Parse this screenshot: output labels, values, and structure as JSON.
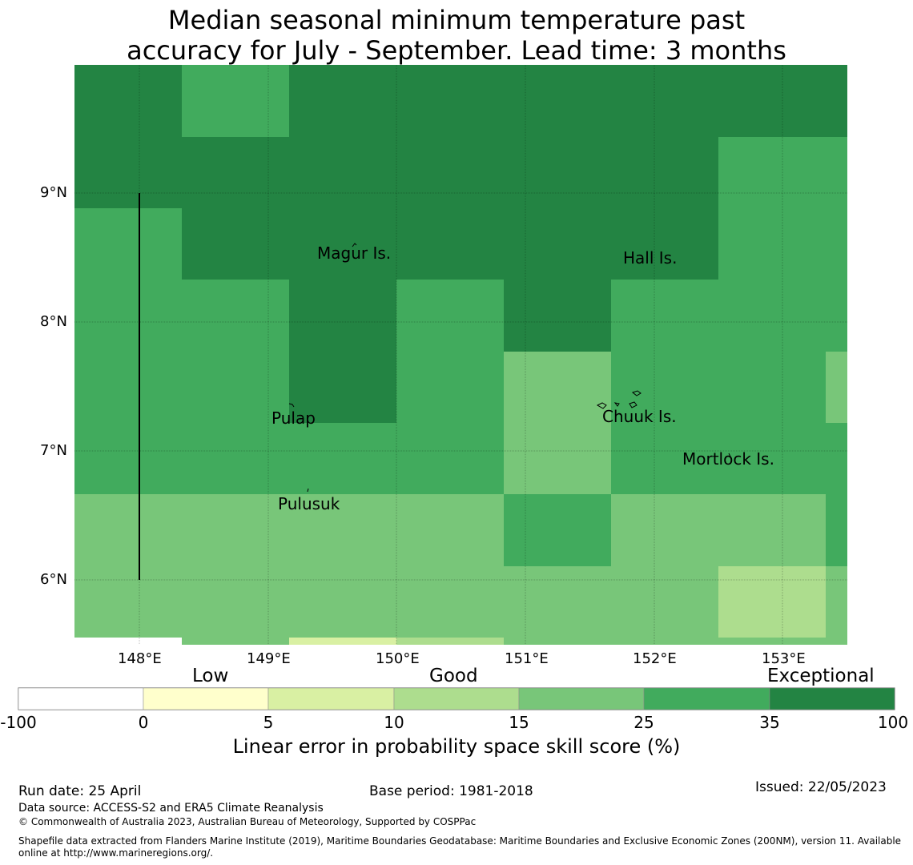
{
  "title": {
    "line1": "Median seasonal minimum temperature past",
    "line2": "accuracy for July - September. Lead time: 3 months"
  },
  "map": {
    "lon_range": [
      147.5,
      153.5
    ],
    "lat_range": [
      5.5,
      10.0
    ],
    "x_ticks": [
      "148°E",
      "149°E",
      "150°E",
      "151°E",
      "152°E",
      "153°E"
    ],
    "y_ticks": [
      "9°N",
      "8°N",
      "7°N",
      "6°N"
    ],
    "cell_levels_note": "level index: 0 = -100..0, 1 = 0..5, 2 = 5..10, 3 = 10..15, 4 = 15..25, 5 = 25..35, 6 = 35..100",
    "places": [
      {
        "name": "Magur Is."
      },
      {
        "name": "Hall Is."
      },
      {
        "name": "Pulap"
      },
      {
        "name": "Chuuk Is."
      },
      {
        "name": "Mortlock Is."
      },
      {
        "name": "Pulusuk"
      }
    ]
  },
  "colorbar": {
    "categories": [
      "Low",
      "Good",
      "Exceptional"
    ],
    "ticks": [
      "-100",
      "0",
      "5",
      "10",
      "15",
      "25",
      "35",
      "100"
    ],
    "colors": [
      "#ffffff",
      "#ffffcc",
      "#d9f0a3",
      "#addd8e",
      "#78c679",
      "#41ab5d",
      "#238443"
    ],
    "label": "Linear error in probability space skill score (%)"
  },
  "footer": {
    "run_date": "Run date: 25 April",
    "base_period": "Base period: 1981-2018",
    "issued": "Issued: 22/05/2023",
    "data_source": "Data source: ACCESS-S2 and ERA5 Climate Reanalysis",
    "copyright": "© Commonwealth of Australia 2023, Australian Bureau of Meteorology, Supported by COSPPac",
    "shapefile": "Shapefile data extracted from Flanders Marine Institute (2019), Maritime Boundaries Geodatabase: Maritime Boundaries and Exclusive Economic Zones (200NM), version 11. Available online at http://www.marineregions.org/."
  }
}
